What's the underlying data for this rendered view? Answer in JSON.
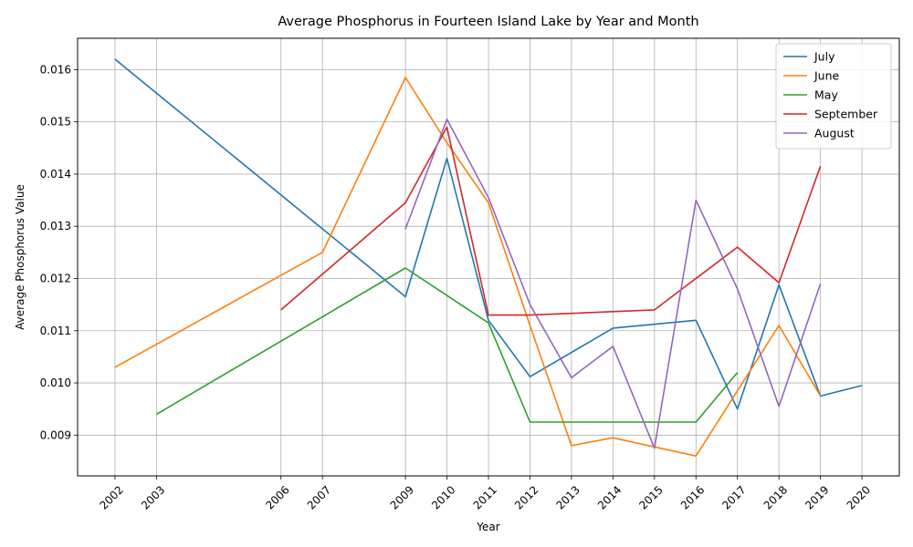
{
  "chart_data": {
    "type": "line",
    "title": "Average Phosphorus in Fourteen Island Lake by Year and Month",
    "xlabel": "Year",
    "ylabel": "Average Phosphorus Value",
    "xlim": [
      2001.1,
      2020.9
    ],
    "ylim": [
      0.00822,
      0.0166
    ],
    "xticks": [
      2002,
      2003,
      2006,
      2007,
      2009,
      2010,
      2011,
      2012,
      2013,
      2014,
      2015,
      2016,
      2017,
      2018,
      2019,
      2020
    ],
    "yticks": [
      0.009,
      0.01,
      0.011,
      0.012,
      0.013,
      0.014,
      0.015,
      0.016
    ],
    "ytick_labels": [
      "0.009",
      "0.010",
      "0.011",
      "0.012",
      "0.013",
      "0.014",
      "0.015",
      "0.016"
    ],
    "grid": true,
    "legend_position": "top-right",
    "series": [
      {
        "name": "July",
        "color": "#1f77b4",
        "x": [
          2002,
          2009,
          2010,
          2011,
          2012,
          2014,
          2016,
          2017,
          2018,
          2019,
          2020
        ],
        "y": [
          0.0162,
          0.01165,
          0.0143,
          0.0112,
          0.01012,
          0.01105,
          0.0112,
          0.0095,
          0.01188,
          0.00975,
          0.00995
        ]
      },
      {
        "name": "June",
        "color": "#ff7f0e",
        "x": [
          2002,
          2007,
          2009,
          2010,
          2011,
          2012,
          2013,
          2014,
          2016,
          2018,
          2019
        ],
        "y": [
          0.0103,
          0.0125,
          0.01585,
          0.0146,
          0.01345,
          0.0111,
          0.0088,
          0.00895,
          0.0086,
          0.0111,
          0.00975
        ]
      },
      {
        "name": "May",
        "color": "#2ca02c",
        "x": [
          2003,
          2009,
          2011,
          2012,
          2016,
          2017
        ],
        "y": [
          0.0094,
          0.0122,
          0.01115,
          0.00925,
          0.00925,
          0.0102
        ]
      },
      {
        "name": "September",
        "color": "#d62728",
        "x": [
          2006,
          2009,
          2010,
          2011,
          2012,
          2015,
          2017,
          2018,
          2019
        ],
        "y": [
          0.0114,
          0.01345,
          0.0149,
          0.0113,
          0.0113,
          0.0114,
          0.0126,
          0.01192,
          0.01415
        ]
      },
      {
        "name": "August",
        "color": "#9467bd",
        "x": [
          2009,
          2010,
          2011,
          2012,
          2013,
          2014,
          2015,
          2016,
          2017,
          2018,
          2019
        ],
        "y": [
          0.01295,
          0.01505,
          0.01355,
          0.0115,
          0.0101,
          0.0107,
          0.00875,
          0.0135,
          0.0118,
          0.00955,
          0.0119
        ]
      }
    ]
  }
}
